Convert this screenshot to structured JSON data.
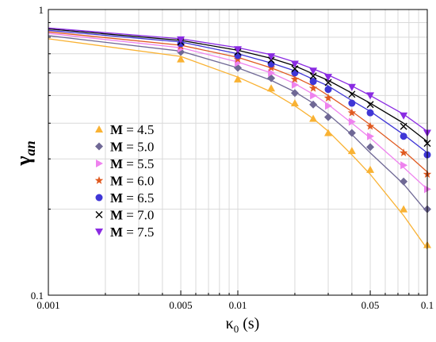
{
  "chart_data": {
    "type": "scatter",
    "title": "",
    "xlabel": "κ0 (s)",
    "xlabel_main": "κ",
    "xlabel_sub": "0",
    "xlabel_unit": " (s)",
    "ylabel": "γan",
    "ylabel_main": "γ",
    "ylabel_sub": "an",
    "x_scale": "log",
    "y_scale": "log",
    "xlim": [
      0.001,
      0.1
    ],
    "ylim": [
      0.1,
      1
    ],
    "x_ticks": [
      0.001,
      0.005,
      0.01,
      0.05,
      0.1
    ],
    "x_tick_labels": [
      "0.001",
      "0.005",
      "0.01",
      "0.05",
      "0.1"
    ],
    "y_ticks": [
      0.1,
      1
    ],
    "y_tick_labels": [
      "0.1",
      "1"
    ],
    "grid": true,
    "legend_position": "left",
    "x": [
      0.001,
      0.005,
      0.01,
      0.015,
      0.02,
      0.025,
      0.03,
      0.04,
      0.05,
      0.075,
      0.1
    ],
    "series": [
      {
        "name": "M = 4.5",
        "label_bold": "M",
        "label_rest": " = 4.5",
        "marker": "triangle-up",
        "color": "#f9b233",
        "values": [
          0.82,
          0.67,
          0.57,
          0.53,
          0.47,
          0.415,
          0.37,
          0.32,
          0.275,
          0.2,
          0.15
        ],
        "fit": [
          0.79,
          0.685,
          0.58,
          0.515,
          0.46,
          0.415,
          0.375,
          0.31,
          0.265,
          0.19,
          0.145
        ]
      },
      {
        "name": "M = 5.0",
        "label_bold": "M",
        "label_rest": " = 5.0",
        "marker": "diamond",
        "color": "#6f6895",
        "values": [
          0.83,
          0.71,
          0.625,
          0.575,
          0.51,
          0.465,
          0.42,
          0.37,
          0.33,
          0.25,
          0.2
        ],
        "fit": [
          0.81,
          0.715,
          0.625,
          0.565,
          0.515,
          0.47,
          0.43,
          0.365,
          0.315,
          0.245,
          0.195
        ]
      },
      {
        "name": "M = 5.5",
        "label_bold": "M",
        "label_rest": " = 5.5",
        "marker": "triangle-right",
        "color": "#ee82ee",
        "values": [
          0.84,
          0.73,
          0.65,
          0.6,
          0.545,
          0.5,
          0.46,
          0.405,
          0.36,
          0.285,
          0.235
        ],
        "fit": [
          0.825,
          0.735,
          0.655,
          0.6,
          0.55,
          0.505,
          0.465,
          0.4,
          0.355,
          0.28,
          0.235
        ]
      },
      {
        "name": "M = 6.0",
        "label_bold": "M",
        "label_rest": " = 6.0",
        "marker": "star",
        "color": "#e05a20",
        "values": [
          0.845,
          0.745,
          0.67,
          0.625,
          0.57,
          0.53,
          0.49,
          0.435,
          0.39,
          0.315,
          0.265
        ],
        "fit": [
          0.835,
          0.75,
          0.68,
          0.625,
          0.58,
          0.54,
          0.5,
          0.44,
          0.395,
          0.32,
          0.27
        ]
      },
      {
        "name": "M = 6.5",
        "label_bold": "M",
        "label_rest": " = 6.5",
        "marker": "circle",
        "color": "#3f36d6",
        "values": [
          0.85,
          0.76,
          0.69,
          0.645,
          0.6,
          0.56,
          0.525,
          0.47,
          0.435,
          0.36,
          0.31
        ],
        "fit": [
          0.845,
          0.77,
          0.7,
          0.65,
          0.61,
          0.57,
          0.54,
          0.48,
          0.44,
          0.365,
          0.315
        ]
      },
      {
        "name": "M = 7.0",
        "label_bold": "M",
        "label_rest": " = 7.0",
        "marker": "x",
        "color": "#000000",
        "values": [
          0.855,
          0.77,
          0.71,
          0.665,
          0.62,
          0.585,
          0.555,
          0.505,
          0.465,
          0.39,
          0.34
        ],
        "fit": [
          0.855,
          0.78,
          0.72,
          0.675,
          0.635,
          0.595,
          0.565,
          0.51,
          0.47,
          0.4,
          0.345
        ]
      },
      {
        "name": "M = 7.5",
        "label_bold": "M",
        "label_rest": " = 7.5",
        "marker": "triangle-down",
        "color": "#8a2be2",
        "values": [
          0.86,
          0.785,
          0.725,
          0.685,
          0.645,
          0.61,
          0.58,
          0.535,
          0.5,
          0.425,
          0.37
        ],
        "fit": [
          0.862,
          0.79,
          0.735,
          0.695,
          0.655,
          0.62,
          0.59,
          0.54,
          0.5,
          0.43,
          0.375
        ]
      }
    ]
  }
}
